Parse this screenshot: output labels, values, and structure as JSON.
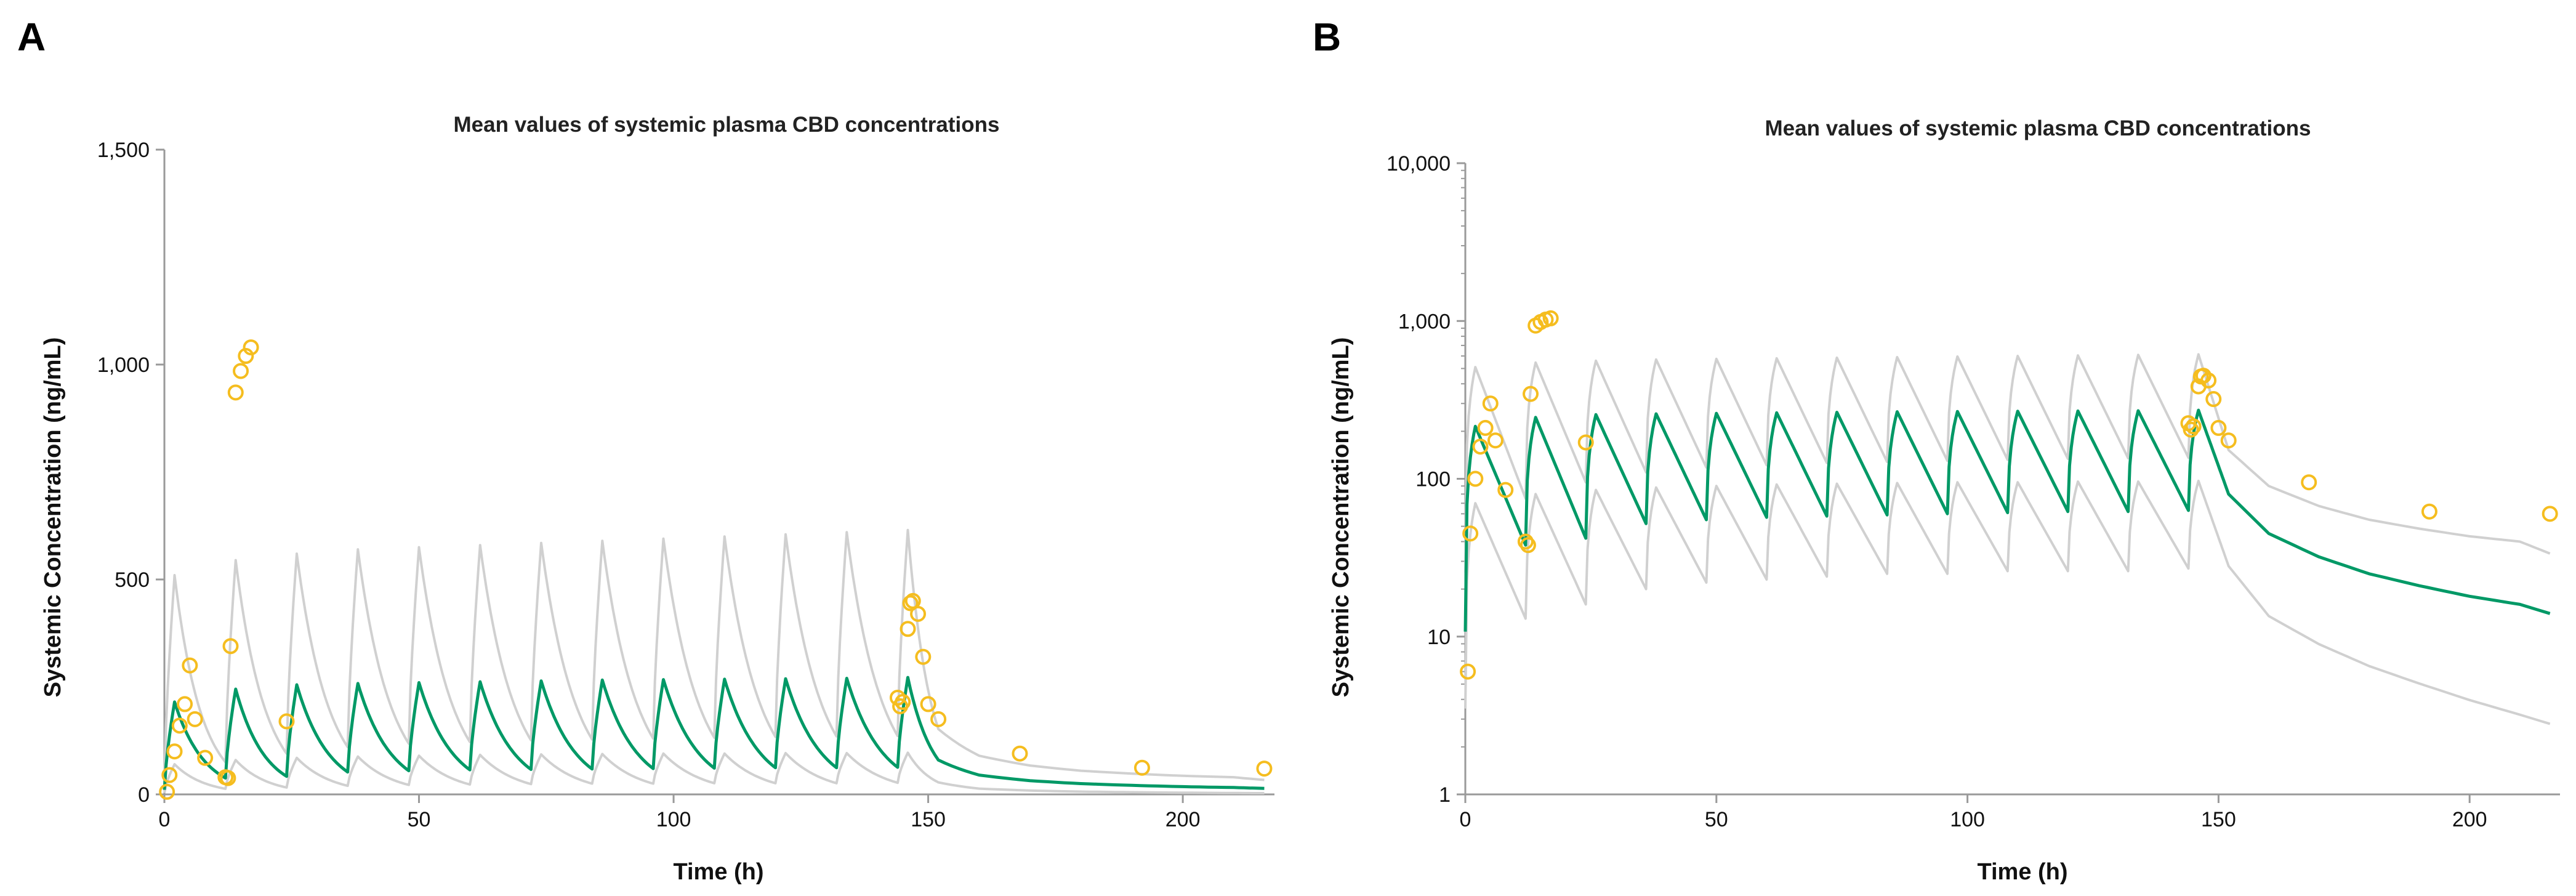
{
  "colors": {
    "median": "#009966",
    "bounds": "#d0d0d0",
    "observed": "#f5bd1f",
    "axis": "#9a9a9a"
  },
  "chart_data": [
    {
      "panel": "A",
      "type": "line",
      "title": "Mean values of systemic plasma CBD concentrations",
      "xlabel": "Time (h)",
      "ylabel": "Systemic Concentration (ng/mL)",
      "xlim": [
        0,
        218
      ],
      "ylim": [
        0,
        1500
      ],
      "yscale": "linear",
      "x_ticks": [
        0,
        50,
        100,
        150,
        200
      ],
      "x_tick_labels": [
        "0",
        "50",
        "100",
        "150",
        "200"
      ],
      "y_ticks": [
        0,
        500,
        1000,
        1500
      ],
      "y_tick_labels": [
        "0",
        "500",
        "1,000",
        "1,500"
      ],
      "grid": false,
      "legend": "none"
    },
    {
      "panel": "B",
      "type": "line",
      "title": "Mean values of systemic plasma CBD concentrations",
      "xlabel": "Time (h)",
      "ylabel": "Systemic Concentration (ng/mL)",
      "xlim": [
        0,
        218
      ],
      "ylim": [
        1,
        10000
      ],
      "yscale": "log",
      "x_ticks": [
        0,
        50,
        100,
        150,
        200
      ],
      "x_tick_labels": [
        "0",
        "50",
        "100",
        "150",
        "200"
      ],
      "y_ticks": [
        1,
        10,
        100,
        1000,
        10000
      ],
      "y_tick_labels": [
        "1",
        "10",
        "100",
        "1,000",
        "10,000"
      ],
      "grid": false,
      "legend": "none"
    }
  ],
  "simulation": {
    "doses_h": [
      0,
      12,
      24,
      36,
      48,
      60,
      72,
      84,
      96,
      108,
      120,
      132,
      144
    ],
    "lag_h": 0.3,
    "tmax_h": 2,
    "terminal_points": [
      [
        152,
        80
      ],
      [
        160,
        45
      ],
      [
        170,
        32
      ],
      [
        180,
        25
      ],
      [
        190,
        21
      ],
      [
        200,
        18
      ],
      [
        210,
        16
      ],
      [
        216,
        14
      ]
    ],
    "series": [
      {
        "name": "",
        "role": "median",
        "peaks": [
          215,
          245,
          255,
          258,
          260,
          262,
          264,
          266,
          267,
          268,
          269,
          270,
          272
        ],
        "troughs": [
          38,
          42,
          52,
          55,
          57,
          58,
          59,
          60,
          61,
          62,
          62,
          63
        ]
      },
      {
        "name": "",
        "role": "upper",
        "peaks": [
          510,
          545,
          560,
          570,
          575,
          580,
          585,
          590,
          595,
          600,
          605,
          610,
          615
        ],
        "troughs": [
          75,
          95,
          110,
          118,
          122,
          126,
          128,
          130,
          132,
          134,
          135,
          136
        ]
      },
      {
        "name": "",
        "role": "lower",
        "peaks": [
          70,
          80,
          85,
          88,
          90,
          92,
          93,
          94,
          95,
          95,
          96,
          96,
          97
        ],
        "troughs": [
          13,
          16,
          20,
          22,
          23,
          24,
          25,
          25,
          26,
          26,
          26,
          27
        ]
      }
    ],
    "terminal_scale": {
      "upper": [
        1.9,
        2.0,
        2.1,
        2.2,
        2.3,
        2.4,
        2.5,
        2.4
      ],
      "lower": [
        0.35,
        0.3,
        0.28,
        0.26,
        0.24,
        0.22,
        0.2,
        0.2
      ]
    }
  },
  "observed": {
    "name": "",
    "x": [
      0.5,
      1,
      2,
      3,
      4,
      5,
      6,
      8,
      12,
      12.5,
      13,
      14,
      15,
      16,
      17,
      24,
      144,
      144.5,
      145,
      146,
      146.5,
      147,
      148,
      149,
      150,
      152,
      168,
      192,
      216
    ],
    "y": [
      6,
      45,
      100,
      160,
      210,
      300,
      175,
      85,
      40,
      38,
      345,
      935,
      985,
      1020,
      1040,
      170,
      225,
      205,
      215,
      385,
      445,
      450,
      420,
      320,
      210,
      175,
      95,
      62,
      60
    ]
  }
}
